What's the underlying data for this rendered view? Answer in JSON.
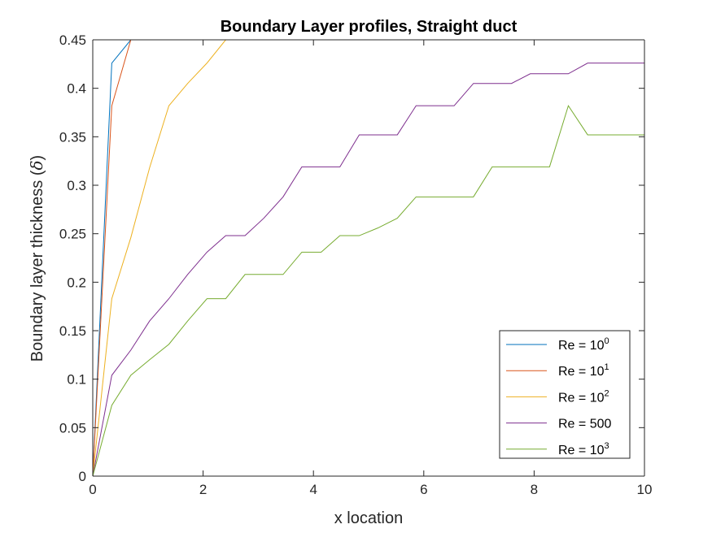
{
  "chart_data": {
    "type": "line",
    "title": "Boundary Layer profiles, Straight duct",
    "xlabel": "x location",
    "ylabel": "Boundary layer thickness (",
    "ylabel_symbol": "δ",
    "ylabel_close": ")",
    "xlim": [
      0,
      10
    ],
    "ylim": [
      0,
      0.45
    ],
    "xticks": [
      "0",
      "2",
      "4",
      "6",
      "8",
      "10"
    ],
    "yticks": [
      "0",
      "0.05",
      "0.1",
      "0.15",
      "0.2",
      "0.25",
      "0.3",
      "0.35",
      "0.4",
      "0.45"
    ],
    "grid": false,
    "legend_position": "bottom-right",
    "series": [
      {
        "name": "Re = 10",
        "name_superscript": "0",
        "color": "#0072BD",
        "x": [
          0,
          0.345,
          0.69,
          1.03,
          1.38,
          1.72,
          2.07,
          2.41,
          10
        ],
        "y": [
          0,
          0.426,
          0.45,
          0.45,
          0.45,
          0.45,
          0.45,
          0.45,
          0.45
        ]
      },
      {
        "name": "Re = 10",
        "name_superscript": "1",
        "color": "#D95319",
        "x": [
          0,
          0.345,
          0.69,
          1.03,
          1.38,
          1.72,
          2.07,
          2.41,
          10
        ],
        "y": [
          0,
          0.382,
          0.45,
          0.45,
          0.45,
          0.45,
          0.45,
          0.45,
          0.45
        ]
      },
      {
        "name": "Re = 10",
        "name_superscript": "2",
        "color": "#EDB120",
        "x": [
          0,
          0.345,
          0.69,
          1.03,
          1.38,
          1.72,
          2.07,
          2.41,
          10
        ],
        "y": [
          0,
          0.183,
          0.246,
          0.318,
          0.382,
          0.405,
          0.426,
          0.45,
          0.45
        ]
      },
      {
        "name": "Re = 500",
        "color": "#7E2F8E",
        "x": [
          0,
          0.345,
          0.69,
          1.03,
          1.38,
          1.72,
          2.07,
          2.41,
          2.76,
          3.1,
          3.45,
          3.79,
          4.14,
          4.48,
          4.83,
          5.17,
          5.52,
          5.86,
          6.21,
          6.55,
          6.9,
          7.24,
          7.59,
          7.93,
          8.28,
          8.62,
          8.97,
          9.31,
          9.66,
          10
        ],
        "y": [
          0,
          0.104,
          0.13,
          0.16,
          0.183,
          0.208,
          0.231,
          0.248,
          0.248,
          0.266,
          0.288,
          0.319,
          0.319,
          0.319,
          0.352,
          0.352,
          0.352,
          0.382,
          0.382,
          0.382,
          0.405,
          0.405,
          0.405,
          0.415,
          0.415,
          0.415,
          0.426,
          0.426,
          0.426,
          0.426
        ]
      },
      {
        "name": "Re = 10",
        "name_superscript": "3",
        "color": "#77AC30",
        "x": [
          0,
          0.345,
          0.69,
          1.03,
          1.38,
          1.72,
          2.07,
          2.41,
          2.76,
          3.1,
          3.45,
          3.79,
          4.14,
          4.48,
          4.83,
          5.17,
          5.52,
          5.86,
          6.21,
          6.55,
          6.9,
          7.24,
          7.59,
          7.93,
          8.28,
          8.62,
          8.97,
          9.31,
          9.66,
          10
        ],
        "y": [
          0,
          0.073,
          0.104,
          0.12,
          0.136,
          0.16,
          0.183,
          0.183,
          0.208,
          0.208,
          0.208,
          0.231,
          0.231,
          0.248,
          0.248,
          0.256,
          0.266,
          0.288,
          0.288,
          0.288,
          0.288,
          0.319,
          0.319,
          0.319,
          0.319,
          0.382,
          0.352,
          0.352,
          0.352,
          0.352
        ]
      }
    ]
  }
}
